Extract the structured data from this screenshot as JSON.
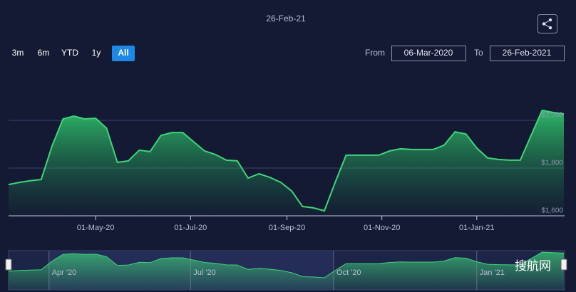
{
  "chart_data": {
    "type": "area",
    "title": "26-Feb-21",
    "x": [
      "2020-03-06",
      "2020-03-13",
      "2020-03-20",
      "2020-03-27",
      "2020-04-03",
      "2020-04-10",
      "2020-04-17",
      "2020-04-24",
      "2020-05-01",
      "2020-05-08",
      "2020-05-15",
      "2020-05-22",
      "2020-05-29",
      "2020-06-05",
      "2020-06-12",
      "2020-06-19",
      "2020-06-26",
      "2020-07-03",
      "2020-07-10",
      "2020-07-17",
      "2020-07-24",
      "2020-07-31",
      "2020-08-07",
      "2020-08-14",
      "2020-08-21",
      "2020-08-28",
      "2020-09-04",
      "2020-09-11",
      "2020-09-18",
      "2020-09-25",
      "2020-10-02",
      "2020-10-09",
      "2020-10-16",
      "2020-10-23",
      "2020-10-30",
      "2020-11-06",
      "2020-11-13",
      "2020-11-20",
      "2020-11-27",
      "2020-12-04",
      "2020-12-11",
      "2020-12-18",
      "2020-12-25",
      "2021-01-01",
      "2021-01-08",
      "2021-01-15",
      "2021-01-22",
      "2021-01-29",
      "2021-02-05",
      "2021-02-12",
      "2021-02-19",
      "2021-02-26"
    ],
    "series": [
      {
        "color": "#3fd47a",
        "values": [
          1731,
          1740,
          1747,
          1752,
          1893,
          2006,
          2018,
          2006,
          2009,
          1967,
          1824,
          1830,
          1875,
          1869,
          1937,
          1949,
          1949,
          1910,
          1872,
          1857,
          1833,
          1830,
          1758,
          1776,
          1761,
          1740,
          1704,
          1639,
          1633,
          1621,
          1740,
          1854,
          1854,
          1854,
          1854,
          1872,
          1881,
          1878,
          1878,
          1878,
          1896,
          1952,
          1943,
          1884,
          1842,
          1836,
          1833,
          1833,
          1938,
          2042,
          2033,
          2027
        ]
      }
    ],
    "xlim": [
      "2020-03-06",
      "2021-02-26"
    ],
    "xticks": [
      {
        "value": "2020-05-01",
        "label": "01-May-20"
      },
      {
        "value": "2020-07-01",
        "label": "01-Jul-20"
      },
      {
        "value": "2020-09-01",
        "label": "01-Sep-20"
      },
      {
        "value": "2020-11-01",
        "label": "01-Nov-20"
      },
      {
        "value": "2021-01-01",
        "label": "01-Jan-21"
      }
    ],
    "ylim": [
      1600,
      2200
    ],
    "yticks": [
      {
        "value": 1600,
        "label": "$1,600"
      },
      {
        "value": 1800,
        "label": "$1,800"
      },
      {
        "value": 2000,
        "label": "$2,000"
      }
    ],
    "grid": true
  },
  "range_selector": {
    "buttons": [
      "3m",
      "6m",
      "YTD",
      "1y",
      "All"
    ],
    "selected": "All",
    "from_label": "From",
    "from": "06-Mar-2020",
    "to_label": "To",
    "to": "26-Feb-2021"
  },
  "navigator": {
    "xticks": [
      {
        "value": "2020-04-01",
        "label": "Apr '20"
      },
      {
        "value": "2020-07-01",
        "label": "Jul '20"
      },
      {
        "value": "2020-10-01",
        "label": "Oct '20"
      },
      {
        "value": "2021-01-01",
        "label": "Jan '21"
      }
    ]
  },
  "watermark": "搜航网"
}
